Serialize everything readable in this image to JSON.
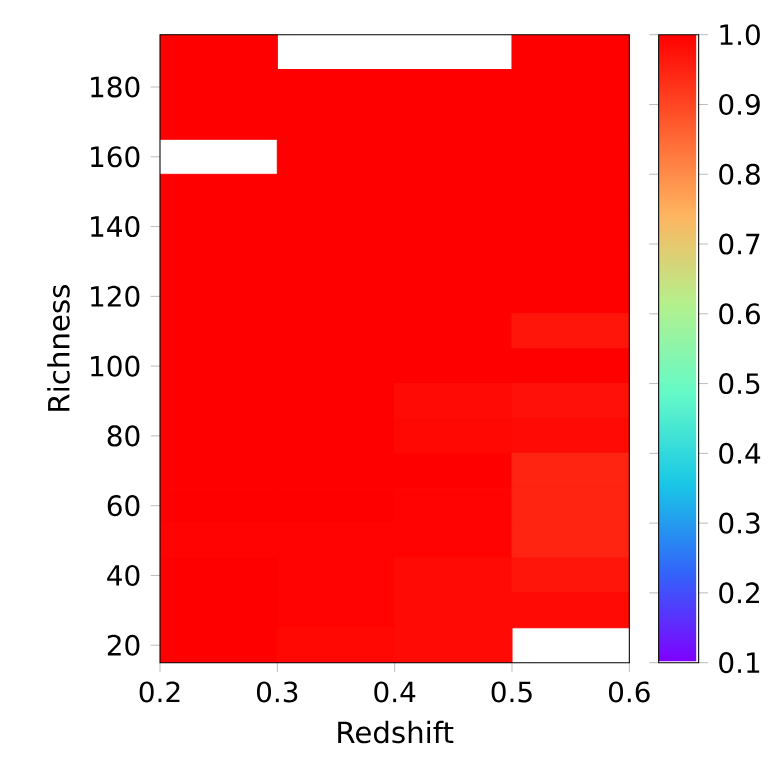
{
  "chart_data": {
    "type": "heatmap",
    "xlabel": "Redshift",
    "ylabel": "Richness",
    "x": [
      0.25,
      0.35,
      0.45,
      0.55
    ],
    "y": [
      190,
      180,
      170,
      160,
      150,
      140,
      130,
      120,
      110,
      100,
      90,
      80,
      70,
      60,
      50,
      40,
      30,
      20
    ],
    "cells": [
      [
        1.0,
        null,
        null,
        1.0
      ],
      [
        1.0,
        1.0,
        1.0,
        1.0
      ],
      [
        1.0,
        1.0,
        1.0,
        1.0
      ],
      [
        null,
        1.0,
        1.0,
        1.0
      ],
      [
        1.0,
        1.0,
        1.0,
        1.0
      ],
      [
        1.0,
        1.0,
        1.0,
        1.0
      ],
      [
        1.0,
        1.0,
        1.0,
        1.0
      ],
      [
        1.0,
        1.0,
        1.0,
        1.0
      ],
      [
        1.0,
        1.0,
        1.0,
        0.97
      ],
      [
        1.0,
        1.0,
        1.0,
        1.0
      ],
      [
        1.0,
        1.0,
        0.985,
        0.975
      ],
      [
        1.0,
        1.0,
        0.99,
        0.985
      ],
      [
        1.0,
        1.0,
        1.0,
        0.95
      ],
      [
        1.0,
        1.0,
        0.995,
        0.95
      ],
      [
        0.995,
        0.995,
        0.995,
        0.95
      ],
      [
        1.0,
        0.995,
        0.985,
        0.97
      ],
      [
        1.0,
        0.995,
        0.985,
        0.985
      ],
      [
        1.0,
        0.99,
        0.985,
        null
      ]
    ],
    "xlim": [
      0.2,
      0.6
    ],
    "xticks": [
      0.2,
      0.3,
      0.4,
      0.5,
      0.6
    ],
    "ylim": [
      15,
      195
    ],
    "yticks": [
      20,
      40,
      60,
      80,
      100,
      120,
      140,
      160,
      180
    ],
    "clim": [
      0.1,
      1.0
    ],
    "cticks": [
      {
        "value": 0.1,
        "label": "0.1"
      },
      {
        "value": 0.2,
        "label": "0.2"
      },
      {
        "value": 0.3,
        "label": "0.3"
      },
      {
        "value": 0.4,
        "label": "0.4"
      },
      {
        "value": 0.5,
        "label": "0.5"
      },
      {
        "value": 0.6,
        "label": "0.6"
      },
      {
        "value": 0.7,
        "label": "0.7"
      },
      {
        "value": 0.8,
        "label": "0.8"
      },
      {
        "value": 0.9,
        "label": "0.9"
      },
      {
        "value": 1.0,
        "label": "1.0"
      }
    ]
  }
}
